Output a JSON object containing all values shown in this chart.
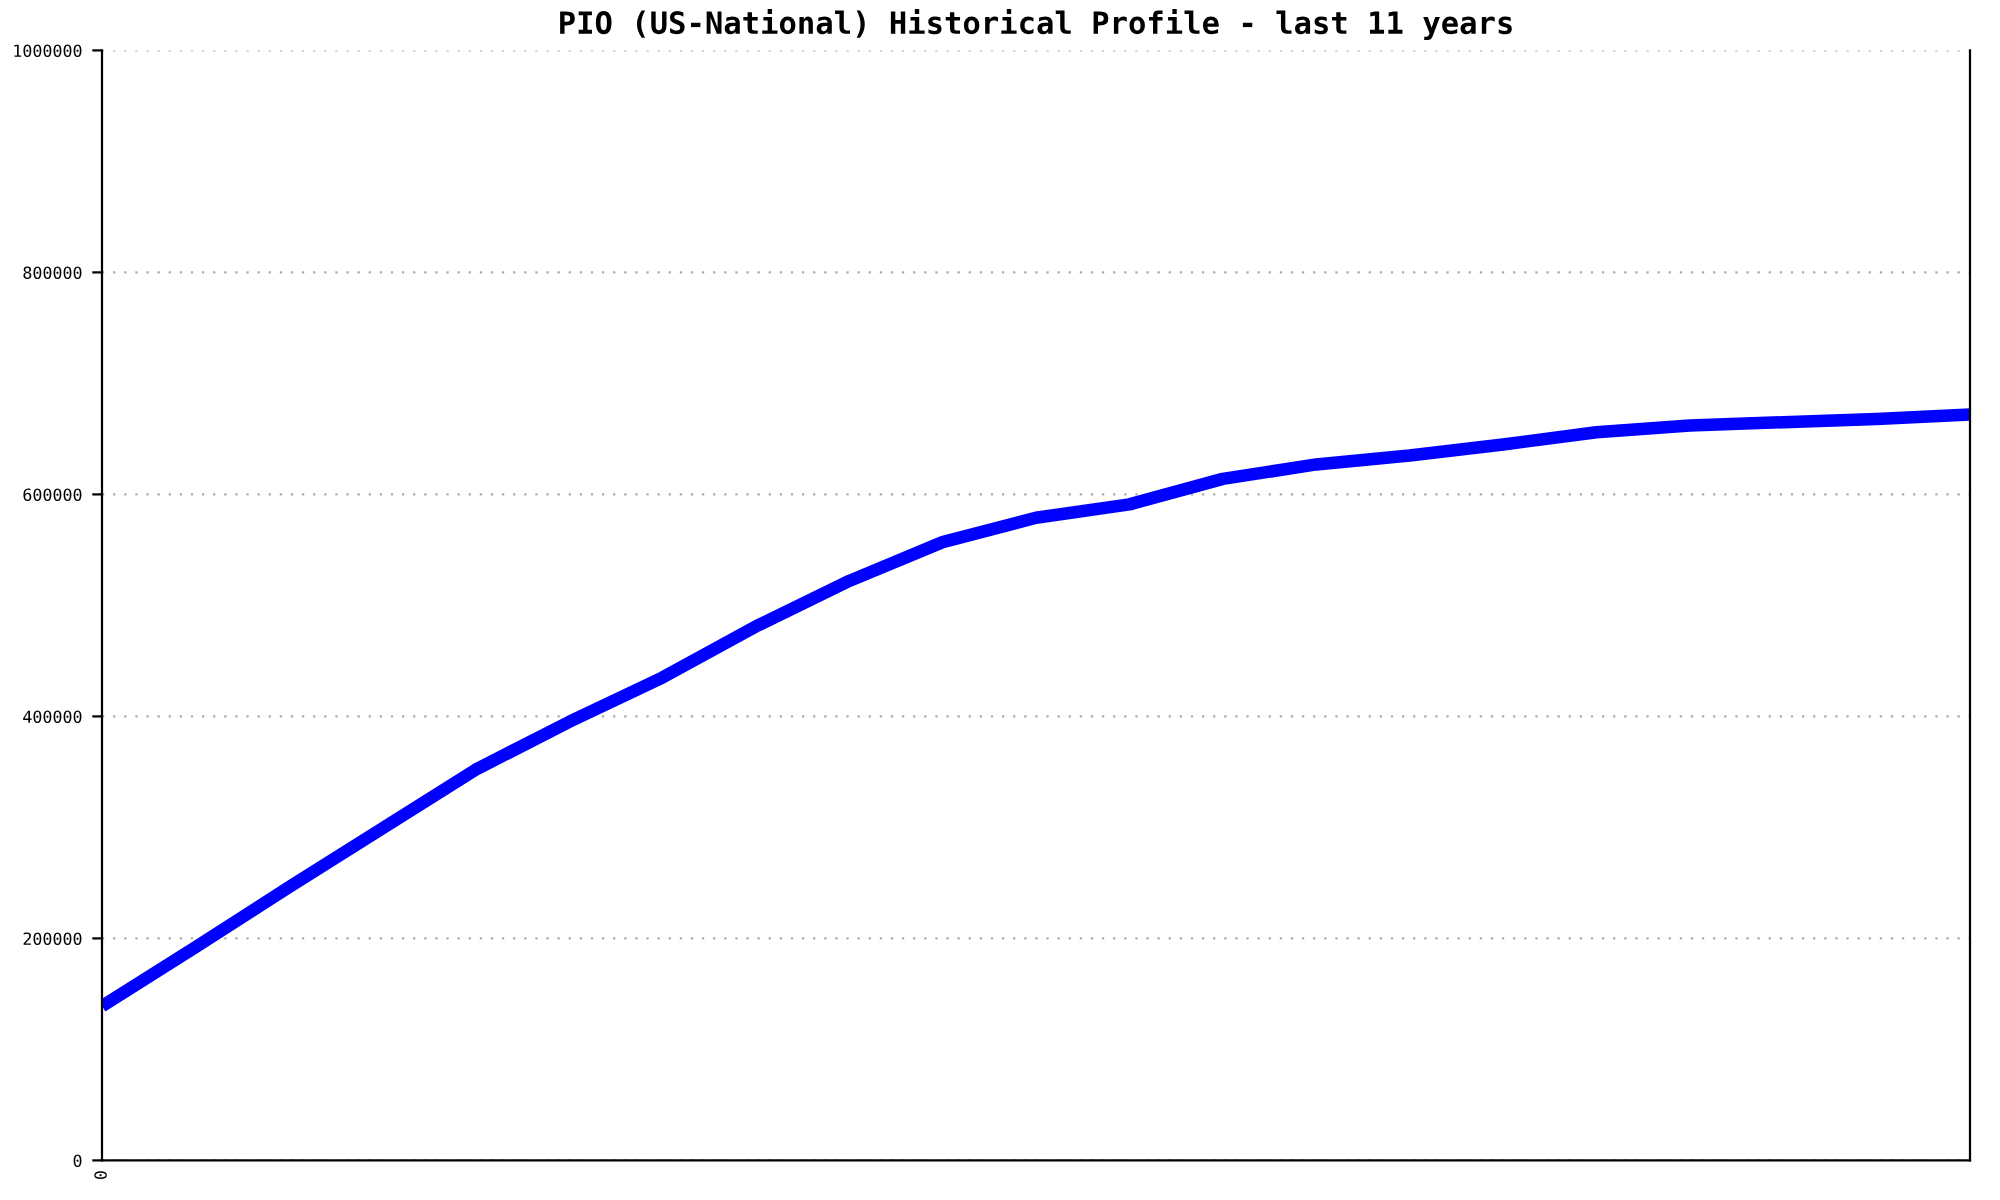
{
  "chart_data": {
    "type": "line",
    "title": "PIO (US-National) Historical Profile - last 11 years",
    "categories": [
      "0",
      null,
      null,
      null,
      null,
      null,
      null,
      null,
      null,
      null,
      null,
      null,
      null,
      null,
      null,
      null,
      null,
      null,
      null,
      null,
      null
    ],
    "series": [
      {
        "color": "#0000ff",
        "values": [
          139000,
          192000,
          246000,
          299000,
          352000,
          395000,
          435000,
          481000,
          522000,
          557000,
          579000,
          591000,
          614000,
          627000,
          635000,
          645000,
          656000,
          662000,
          665000,
          668000,
          672000
        ]
      }
    ],
    "ylim": [
      0,
      1000000
    ],
    "yticks": [
      0,
      200000,
      400000,
      600000,
      800000,
      1000000
    ],
    "grid": "y",
    "marker": "none",
    "line_style": "solid"
  }
}
